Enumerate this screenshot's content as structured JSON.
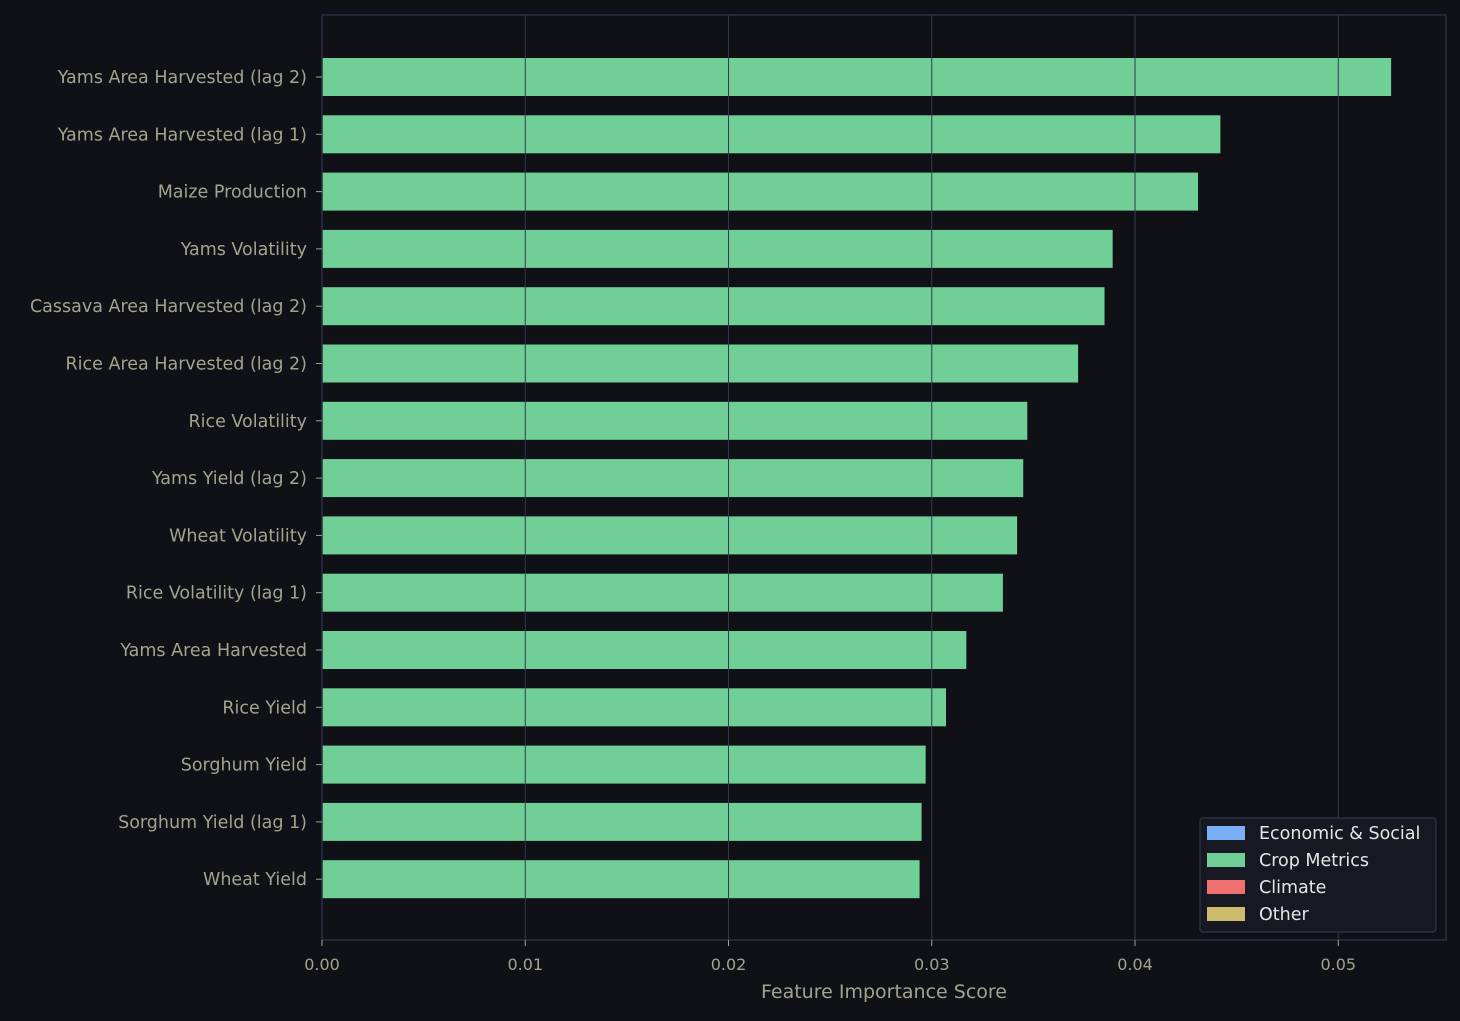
{
  "chart_data": {
    "type": "bar",
    "orientation": "horizontal",
    "title": "",
    "xlabel": "Feature Importance Score",
    "ylabel": "",
    "xlim": [
      0,
      0.0553
    ],
    "xticks": [
      0.0,
      0.01,
      0.02,
      0.03,
      0.04,
      0.05
    ],
    "xtick_labels": [
      "0.00",
      "0.01",
      "0.02",
      "0.03",
      "0.04",
      "0.05"
    ],
    "grid": "vertical",
    "categories": [
      "Yams Area Harvested (lag 2)",
      "Yams Area Harvested (lag 1)",
      "Maize Production",
      "Yams Volatility",
      "Cassava Area Harvested (lag 2)",
      "Rice Area Harvested (lag 2)",
      "Rice Volatility",
      "Yams Yield (lag 2)",
      "Wheat Volatility",
      "Rice Volatility (lag 1)",
      "Yams Area Harvested",
      "Rice Yield",
      "Sorghum Yield",
      "Sorghum Yield (lag 1)",
      "Wheat Yield"
    ],
    "values": [
      0.0526,
      0.0442,
      0.0431,
      0.0389,
      0.0385,
      0.0372,
      0.0347,
      0.0345,
      0.0342,
      0.0335,
      0.0317,
      0.0307,
      0.0297,
      0.0295,
      0.0294
    ],
    "bar_categories": [
      "Crop Metrics",
      "Crop Metrics",
      "Crop Metrics",
      "Crop Metrics",
      "Crop Metrics",
      "Crop Metrics",
      "Crop Metrics",
      "Crop Metrics",
      "Crop Metrics",
      "Crop Metrics",
      "Crop Metrics",
      "Crop Metrics",
      "Crop Metrics",
      "Crop Metrics",
      "Crop Metrics"
    ],
    "legend": {
      "placement": "lower-right",
      "entries": [
        {
          "label": "Economic & Social",
          "color": "#7aaef5"
        },
        {
          "label": "Crop Metrics",
          "color": "#6fcf97"
        },
        {
          "label": "Climate",
          "color": "#f07070"
        },
        {
          "label": "Other",
          "color": "#cdbb6e"
        }
      ]
    }
  },
  "colors": {
    "background": "#0f1117",
    "axes_edge": "#2c2f40",
    "grid": "#373a4c",
    "tick_label": "#a3a38e",
    "bar": "#6fcf97",
    "legend_bg": "#161922",
    "legend_text": "#e6e6e6"
  }
}
